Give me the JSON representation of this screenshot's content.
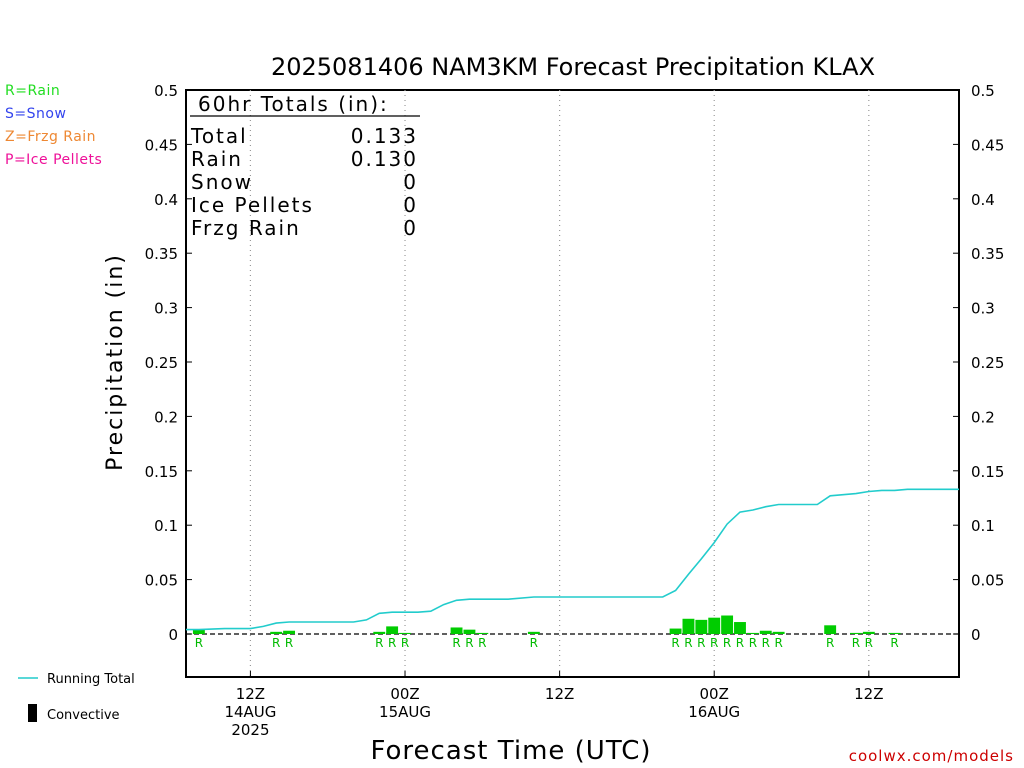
{
  "chart_data": {
    "type": "bar",
    "title": "2025081406 NAM3KM Forecast Precipitation KLAX",
    "xlabel": "Forecast Time (UTC)",
    "ylabel": "Precipitation (in)",
    "ylim": [
      0,
      0.5
    ],
    "yticks": [
      "0",
      "0.05",
      "0.1",
      "0.15",
      "0.2",
      "0.25",
      "0.3",
      "0.35",
      "0.4",
      "0.45",
      "0.5"
    ],
    "xlim": [
      7,
      67
    ],
    "grid": "vertical-dotted",
    "xticks": [
      {
        "hour": 12,
        "lines": [
          "12Z",
          "14AUG",
          "2025"
        ]
      },
      {
        "hour": 24,
        "lines": [
          "00Z",
          "15AUG"
        ]
      },
      {
        "hour": 36,
        "lines": [
          "12Z"
        ]
      },
      {
        "hour": 48,
        "lines": [
          "00Z",
          "16AUG"
        ]
      },
      {
        "hour": 60,
        "lines": [
          "12Z"
        ]
      }
    ],
    "type_legend": [
      {
        "text": "R=Rain",
        "color": "#22dd22"
      },
      {
        "text": "S=Snow",
        "color": "#3344ee"
      },
      {
        "text": "Z=Frzg Rain",
        "color": "#ee8833"
      },
      {
        "text": "P=Ice Pellets",
        "color": "#ee1199"
      }
    ],
    "totals": {
      "heading": "60hr Totals (in):",
      "rows": [
        {
          "label": "Total",
          "value": "0.133"
        },
        {
          "label": "Rain",
          "value": "0.130"
        },
        {
          "label": "Snow",
          "value": "0"
        },
        {
          "label": "Ice Pellets",
          "value": "0"
        },
        {
          "label": "Frzg Rain",
          "value": "0"
        }
      ]
    },
    "series_legend": [
      {
        "text": "Running Total",
        "color": "#22cccc"
      },
      {
        "text": "Convective",
        "color": "#000000"
      }
    ],
    "credit": "coolwx.com/models",
    "precip_type_label": "R",
    "bars": [
      {
        "hour": 8,
        "value": 0.004,
        "type": "R"
      },
      {
        "hour": 14,
        "value": 0.002,
        "type": "R"
      },
      {
        "hour": 15,
        "value": 0.003,
        "type": "R"
      },
      {
        "hour": 22,
        "value": 0.002,
        "type": "R"
      },
      {
        "hour": 23,
        "value": 0.007,
        "type": "R"
      },
      {
        "hour": 24,
        "value": 0.001,
        "type": "R"
      },
      {
        "hour": 28,
        "value": 0.006,
        "type": "R"
      },
      {
        "hour": 29,
        "value": 0.004,
        "type": "R"
      },
      {
        "hour": 30,
        "value": 0.001,
        "type": "R"
      },
      {
        "hour": 34,
        "value": 0.002,
        "type": "R"
      },
      {
        "hour": 45,
        "value": 0.005,
        "type": "R"
      },
      {
        "hour": 46,
        "value": 0.014,
        "type": "R"
      },
      {
        "hour": 47,
        "value": 0.013,
        "type": "R"
      },
      {
        "hour": 48,
        "value": 0.015,
        "type": "R"
      },
      {
        "hour": 49,
        "value": 0.017,
        "type": "R"
      },
      {
        "hour": 50,
        "value": 0.011,
        "type": "R"
      },
      {
        "hour": 51,
        "value": 0.001,
        "type": "R"
      },
      {
        "hour": 52,
        "value": 0.003,
        "type": "R"
      },
      {
        "hour": 53,
        "value": 0.002,
        "type": "R"
      },
      {
        "hour": 57,
        "value": 0.008,
        "type": "R"
      },
      {
        "hour": 59,
        "value": 0.001,
        "type": "R"
      },
      {
        "hour": 60,
        "value": 0.002,
        "type": "R"
      },
      {
        "hour": 62,
        "value": 0.001,
        "type": "R"
      }
    ],
    "running_total": {
      "x": [
        7,
        8,
        10,
        12,
        13,
        14,
        15,
        16,
        20,
        21,
        22,
        23,
        24,
        25,
        26,
        27,
        28,
        29,
        30,
        32,
        34,
        35,
        38,
        44,
        45,
        46,
        47,
        48,
        49,
        50,
        51,
        52,
        53,
        54,
        55,
        56,
        57,
        58,
        59,
        60,
        61,
        62,
        63,
        67
      ],
      "y": [
        0.004,
        0.004,
        0.005,
        0.005,
        0.007,
        0.01,
        0.011,
        0.011,
        0.011,
        0.013,
        0.019,
        0.02,
        0.02,
        0.02,
        0.021,
        0.027,
        0.031,
        0.032,
        0.032,
        0.032,
        0.034,
        0.034,
        0.034,
        0.034,
        0.04,
        0.055,
        0.069,
        0.084,
        0.101,
        0.112,
        0.114,
        0.117,
        0.119,
        0.119,
        0.119,
        0.119,
        0.127,
        0.128,
        0.129,
        0.131,
        0.132,
        0.132,
        0.133,
        0.133
      ]
    }
  }
}
